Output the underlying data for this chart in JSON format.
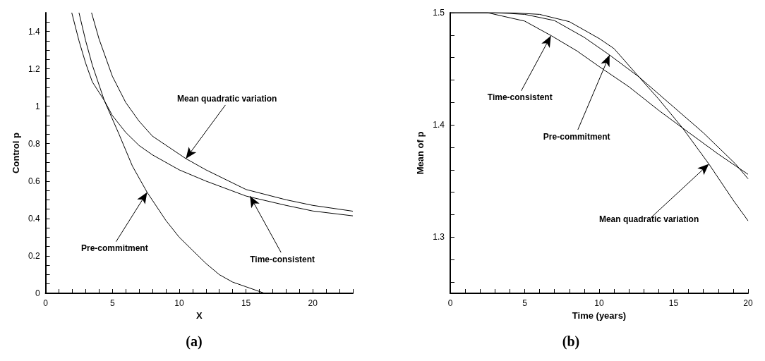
{
  "chart_data": [
    {
      "type": "line",
      "xlabel": "X",
      "ylabel": "Control p",
      "xlim": [
        0,
        23
      ],
      "ylim": [
        0,
        1.5
      ],
      "grid": false,
      "marker": "none",
      "line_style": "solid",
      "xticks": [
        0,
        {
          "value": 1,
          "label": null
        },
        {
          "value": 2,
          "label": null
        },
        {
          "value": 3,
          "label": null
        },
        {
          "value": 4,
          "label": null
        },
        5,
        {
          "value": 6,
          "label": null
        },
        {
          "value": 7,
          "label": null
        },
        {
          "value": 8,
          "label": null
        },
        {
          "value": 9,
          "label": null
        },
        10,
        {
          "value": 11,
          "label": null
        },
        {
          "value": 12,
          "label": null
        },
        {
          "value": 13,
          "label": null
        },
        {
          "value": 14,
          "label": null
        },
        15,
        {
          "value": 16,
          "label": null
        },
        {
          "value": 17,
          "label": null
        },
        {
          "value": 18,
          "label": null
        },
        {
          "value": 19,
          "label": null
        },
        20,
        {
          "value": 21,
          "label": null
        },
        {
          "value": 22,
          "label": null
        },
        {
          "value": 23,
          "label": null
        }
      ],
      "yticks": [
        0,
        {
          "value": 0.05,
          "label": null
        },
        {
          "value": 0.1,
          "label": null
        },
        {
          "value": 0.15,
          "label": null
        },
        0.2,
        {
          "value": 0.25,
          "label": null
        },
        {
          "value": 0.3,
          "label": null
        },
        {
          "value": 0.35,
          "label": null
        },
        0.4,
        {
          "value": 0.45,
          "label": null
        },
        {
          "value": 0.5,
          "label": null
        },
        {
          "value": 0.55,
          "label": null
        },
        0.6,
        {
          "value": 0.65,
          "label": null
        },
        {
          "value": 0.7,
          "label": null
        },
        {
          "value": 0.75,
          "label": null
        },
        0.8,
        {
          "value": 0.85,
          "label": null
        },
        {
          "value": 0.9,
          "label": null
        },
        {
          "value": 0.95,
          "label": null
        },
        1,
        {
          "value": 1.05,
          "label": null
        },
        {
          "value": 1.1,
          "label": null
        },
        {
          "value": 1.15,
          "label": null
        },
        1.2,
        {
          "value": 1.25,
          "label": null
        },
        {
          "value": 1.3,
          "label": null
        },
        {
          "value": 1.35,
          "label": null
        },
        1.4,
        {
          "value": 1.45,
          "label": null
        }
      ],
      "series": [
        {
          "color": "#000000",
          "x": [
            2.5,
            3,
            3.5,
            4.4,
            5.5,
            6.5,
            7.6,
            9,
            10,
            11,
            12,
            13,
            14,
            15,
            16.4
          ],
          "values": [
            1.5,
            1.35,
            1.22,
            1.03,
            0.85,
            0.68,
            0.54,
            0.39,
            0.3,
            0.23,
            0.16,
            0.1,
            0.06,
            0.035,
            0
          ]
        },
        {
          "color": "#000000",
          "x": [
            1.96,
            2.5,
            3,
            3.5,
            4.4,
            5,
            6,
            7,
            8,
            10,
            12,
            15,
            18,
            20,
            23
          ],
          "values": [
            1.5,
            1.35,
            1.23,
            1.13,
            1.03,
            0.95,
            0.86,
            0.79,
            0.74,
            0.66,
            0.6,
            0.52,
            0.47,
            0.44,
            0.414
          ]
        },
        {
          "color": "#000000",
          "x": [
            3.44,
            4,
            5,
            6,
            7,
            8,
            10.5,
            12,
            15,
            18,
            20,
            23
          ],
          "values": [
            1.5,
            1.36,
            1.16,
            1.02,
            0.92,
            0.84,
            0.72,
            0.66,
            0.555,
            0.5,
            0.47,
            0.439
          ]
        }
      ],
      "annotations": [
        {
          "text": "Mean quadratic variation",
          "x": 10.5,
          "y": 0.72
        },
        {
          "text": "Pre-commitment",
          "x": 7.6,
          "y": 0.54
        },
        {
          "text": "Time-consistent",
          "x": 15.3,
          "y": 0.52
        },
        "(a)"
      ]
    },
    {
      "type": "line",
      "xlabel": "Time (years)",
      "ylabel": "Mean of p",
      "xlim": [
        0,
        20
      ],
      "ylim": [
        1.25,
        1.5
      ],
      "grid": false,
      "marker": "none",
      "line_style": "solid",
      "xticks": [
        0,
        {
          "value": 1,
          "label": null
        },
        {
          "value": 2,
          "label": null
        },
        {
          "value": 3,
          "label": null
        },
        {
          "value": 4,
          "label": null
        },
        5,
        {
          "value": 6,
          "label": null
        },
        {
          "value": 7,
          "label": null
        },
        {
          "value": 8,
          "label": null
        },
        {
          "value": 9,
          "label": null
        },
        10,
        {
          "value": 11,
          "label": null
        },
        {
          "value": 12,
          "label": null
        },
        {
          "value": 13,
          "label": null
        },
        {
          "value": 14,
          "label": null
        },
        15,
        {
          "value": 16,
          "label": null
        },
        {
          "value": 17,
          "label": null
        },
        {
          "value": 18,
          "label": null
        },
        {
          "value": 19,
          "label": null
        },
        20
      ],
      "yticks": [
        {
          "value": 1.26,
          "label": null
        },
        {
          "value": 1.28,
          "label": null
        },
        1.3,
        {
          "value": 1.32,
          "label": null
        },
        {
          "value": 1.34,
          "label": null
        },
        {
          "value": 1.36,
          "label": null
        },
        {
          "value": 1.38,
          "label": null
        },
        1.4,
        {
          "value": 1.42,
          "label": null
        },
        {
          "value": 1.44,
          "label": null
        },
        {
          "value": 1.46,
          "label": null
        },
        {
          "value": 1.48,
          "label": null
        },
        1.5
      ],
      "series": [
        {
          "color": "#000000",
          "x": [
            0,
            2.5,
            5,
            6.8,
            8.5,
            10,
            12,
            14,
            15.6,
            18,
            20
          ],
          "values": [
            1.5,
            1.5,
            1.4925,
            1.4794,
            1.466,
            1.452,
            1.434,
            1.413,
            1.3973,
            1.374,
            1.356
          ]
        },
        {
          "color": "#000000",
          "x": [
            0,
            3,
            5,
            7,
            9,
            10.7,
            12.67,
            15,
            17,
            19.16,
            20
          ],
          "values": [
            1.5,
            1.5,
            1.4985,
            1.493,
            1.478,
            1.4623,
            1.4428,
            1.416,
            1.393,
            1.3652,
            1.352
          ]
        },
        {
          "color": "#000000",
          "x": [
            0,
            4,
            6,
            8,
            10,
            11,
            12.67,
            14,
            15.6,
            17.37,
            19,
            20
          ],
          "values": [
            1.5,
            1.5,
            1.4985,
            1.492,
            1.477,
            1.468,
            1.4428,
            1.423,
            1.3973,
            1.3652,
            1.333,
            1.3146
          ]
        }
      ],
      "annotations": [
        {
          "text": "Time-consistent",
          "x": 6.76,
          "y": 1.4794
        },
        {
          "text": "Pre-commitment",
          "x": 10.7,
          "y": 1.4623
        },
        {
          "text": "Mean quadratic variation",
          "x": 17.37,
          "y": 1.3652
        },
        "(b)"
      ]
    }
  ]
}
